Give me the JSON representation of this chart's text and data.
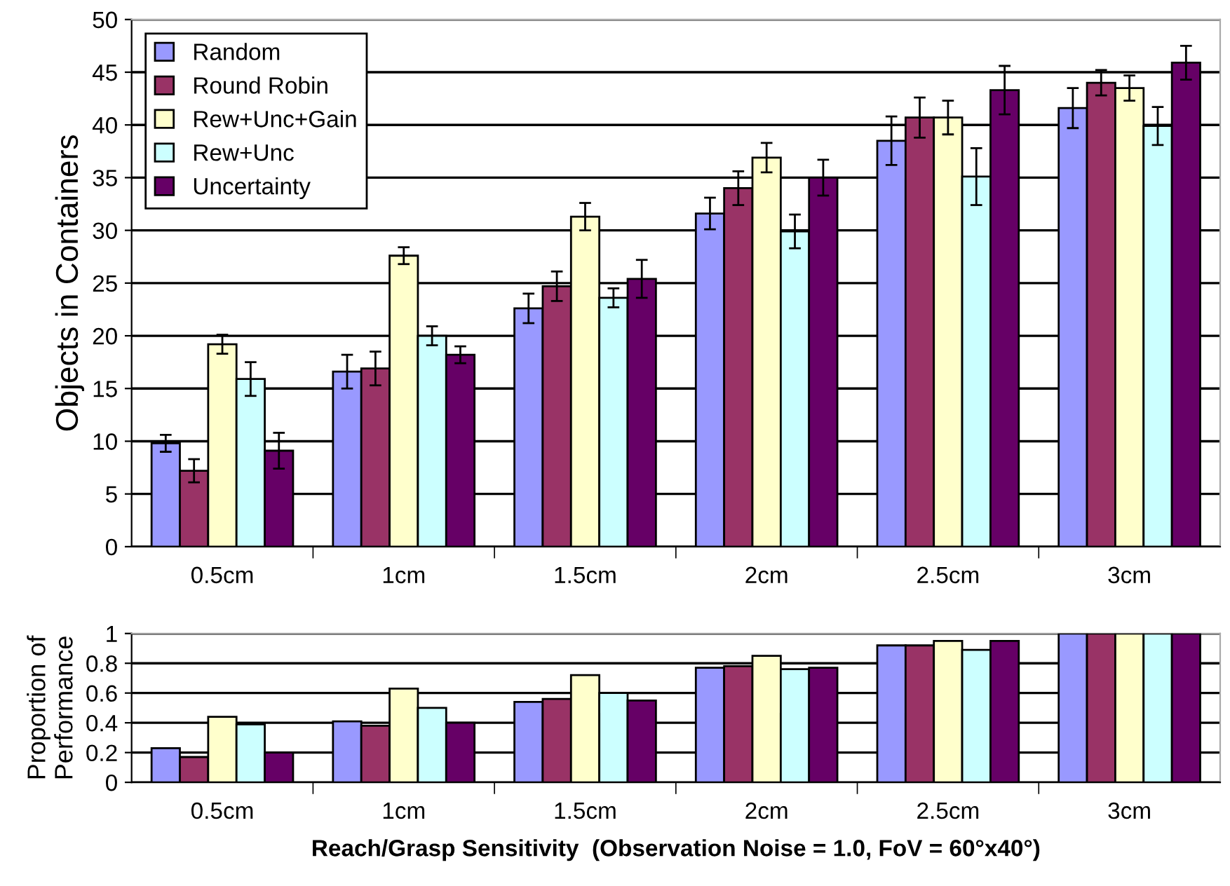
{
  "chart_data": [
    {
      "type": "bar",
      "ylabel": "Objects in Containers",
      "categories": [
        "0.5cm",
        "1cm",
        "1.5cm",
        "2cm",
        "2.5cm",
        "3cm"
      ],
      "ylim": [
        0,
        50
      ],
      "yticks": [
        0,
        5,
        10,
        15,
        20,
        25,
        30,
        35,
        40,
        45,
        50
      ],
      "grid": "y",
      "legend": "top left",
      "series": [
        {
          "name": "Random",
          "color": "#9999ff",
          "values": [
            9.8,
            16.6,
            22.6,
            31.6,
            38.5,
            41.6
          ],
          "errors": [
            0.8,
            1.6,
            1.4,
            1.5,
            2.3,
            1.9
          ]
        },
        {
          "name": "Round Robin",
          "color": "#993366",
          "values": [
            7.2,
            16.9,
            24.7,
            34.0,
            40.7,
            44.0
          ],
          "errors": [
            1.1,
            1.6,
            1.4,
            1.6,
            1.9,
            1.2
          ]
        },
        {
          "name": "Rew+Unc+Gain",
          "color": "#ffffcc",
          "values": [
            19.2,
            27.6,
            31.3,
            36.9,
            40.7,
            43.5
          ],
          "errors": [
            0.9,
            0.8,
            1.3,
            1.4,
            1.6,
            1.2
          ]
        },
        {
          "name": "Rew+Unc",
          "color": "#ccffff",
          "values": [
            15.9,
            20.0,
            23.6,
            29.9,
            35.1,
            39.9
          ],
          "errors": [
            1.6,
            0.9,
            0.9,
            1.6,
            2.7,
            1.8
          ]
        },
        {
          "name": "Uncertainty",
          "color": "#660066",
          "values": [
            9.1,
            18.2,
            25.4,
            35.0,
            43.3,
            45.9
          ],
          "errors": [
            1.7,
            0.8,
            1.8,
            1.7,
            2.3,
            1.6
          ]
        }
      ]
    },
    {
      "type": "bar",
      "ylabel": "Proportion of\nPerformance",
      "xlabel": "Reach/Grasp Sensitivity  (Observation Noise = 1.0, FoV = 60°x40°)",
      "categories": [
        "0.5cm",
        "1cm",
        "1.5cm",
        "2cm",
        "2.5cm",
        "3cm"
      ],
      "ylim": [
        0,
        1
      ],
      "yticks": [
        0,
        0.2,
        0.4,
        0.6,
        0.8,
        1
      ],
      "grid": "y",
      "series": [
        {
          "color": "#9999ff",
          "values": [
            0.23,
            0.41,
            0.54,
            0.77,
            0.92,
            1
          ]
        },
        {
          "color": "#993366",
          "values": [
            0.17,
            0.38,
            0.56,
            0.78,
            0.92,
            1
          ]
        },
        {
          "color": "#ffffcc",
          "values": [
            0.44,
            0.63,
            0.72,
            0.85,
            0.95,
            1
          ]
        },
        {
          "color": "#ccffff",
          "values": [
            0.39,
            0.5,
            0.6,
            0.76,
            0.89,
            1
          ]
        },
        {
          "color": "#660066",
          "values": [
            0.2,
            0.4,
            0.55,
            0.77,
            0.95,
            1
          ]
        }
      ]
    }
  ]
}
